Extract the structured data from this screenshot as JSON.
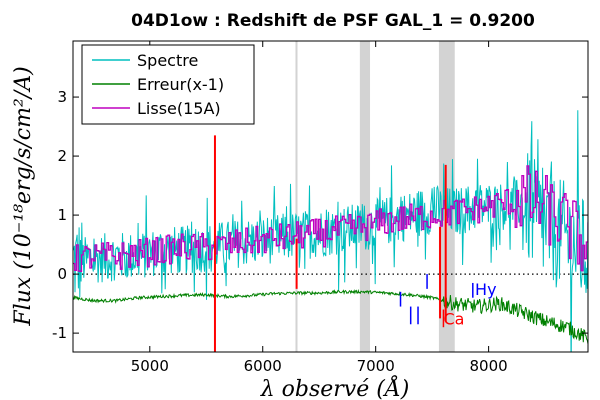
{
  "chart_data": {
    "type": "line",
    "title": "04D1ow : Redshift de PSF GAL_1 = 0.9200",
    "xlabel": "λ observé (Å)",
    "ylabel": "Flux (10⁻¹⁸erg/s/cm²/A)",
    "xlim": [
      4320,
      8880
    ],
    "ylim": [
      -1.32,
      3.95
    ],
    "xticks": [
      5000,
      6000,
      7000,
      8000
    ],
    "yticks": [
      -1,
      0,
      1,
      2,
      3
    ],
    "zero_line": true,
    "legend_position": "top-left",
    "legend": [
      "Spectre",
      "Erreur(x-1)",
      "Lisse(15A)"
    ],
    "colors": {
      "spectre": "#00bfbf",
      "erreur": "#008000",
      "lisse": "#bf00bf",
      "sky_lines": "#ff0000",
      "bands": "#d3d3d3",
      "blue_marks": "#0000ff",
      "red_marks": "#ff0000"
    },
    "telluric_bands": [
      [
        6290,
        6305
      ],
      [
        6860,
        6950
      ],
      [
        7560,
        7700
      ]
    ],
    "sky_lines": [
      {
        "x": 5577,
        "y0": -1.32,
        "y1": 2.35
      },
      {
        "x": 6300,
        "y0": -0.25,
        "y1": 0.6
      },
      {
        "x": 7570,
        "y0": -0.75,
        "y1": 0.8
      },
      {
        "x": 7620,
        "y0": -0.8,
        "y1": 1.85
      }
    ],
    "blue_marks": [
      {
        "x": 7220,
        "y0": -0.3,
        "y1": -0.55
      },
      {
        "x": 7310,
        "y0": -0.55,
        "y1": -0.85
      },
      {
        "x": 7375,
        "y0": -0.55,
        "y1": -0.85
      },
      {
        "x": 7455,
        "y0": 0.0,
        "y1": -0.25
      },
      {
        "x": 7860,
        "y0": -0.15,
        "y1": -0.4
      }
    ],
    "red_marks": [
      {
        "x": 7600,
        "y0": -0.6,
        "y1": -0.9
      }
    ],
    "annotations": [
      {
        "text": "Hy",
        "x": 7880,
        "y": -0.35,
        "color": "#0000ff"
      },
      {
        "text": "Ca",
        "x": 7600,
        "y": -0.85,
        "color": "#ff0000"
      }
    ],
    "series": [
      {
        "name": "Spectre",
        "x": [
          4330,
          4500,
          4700,
          4900,
          5100,
          5300,
          5500,
          5700,
          5900,
          6100,
          6300,
          6500,
          6700,
          6900,
          7100,
          7300,
          7500,
          7700,
          7900,
          8100,
          8300,
          8500,
          8700,
          8880
        ],
        "values": [
          0.2,
          0.25,
          0.3,
          0.3,
          0.4,
          0.4,
          0.45,
          0.5,
          0.55,
          0.6,
          0.65,
          0.7,
          0.75,
          0.8,
          0.9,
          1.0,
          1.1,
          1.05,
          1.15,
          1.15,
          1.2,
          0.8,
          0.6,
          0.3
        ]
      },
      {
        "name": "Erreur(x-1)",
        "x": [
          4330,
          4500,
          4700,
          4900,
          5100,
          5300,
          5500,
          5700,
          5900,
          6100,
          6300,
          6500,
          6700,
          6900,
          7100,
          7300,
          7500,
          7700,
          7900,
          8100,
          8300,
          8500,
          8700,
          8880
        ],
        "values": [
          -0.4,
          -0.45,
          -0.45,
          -0.4,
          -0.38,
          -0.36,
          -0.35,
          -0.38,
          -0.36,
          -0.33,
          -0.32,
          -0.32,
          -0.3,
          -0.3,
          -0.32,
          -0.35,
          -0.4,
          -0.5,
          -0.55,
          -0.5,
          -0.65,
          -0.8,
          -0.9,
          -1.1
        ]
      },
      {
        "name": "Lisse(15A)",
        "x": [
          4330,
          4500,
          4700,
          4900,
          5100,
          5300,
          5500,
          5700,
          5900,
          6100,
          6300,
          6500,
          6700,
          6900,
          7100,
          7300,
          7500,
          7700,
          7900,
          8100,
          8300,
          8500,
          8700,
          8880
        ],
        "values": [
          0.25,
          0.3,
          0.3,
          0.35,
          0.4,
          0.45,
          0.45,
          0.5,
          0.55,
          0.6,
          0.65,
          0.7,
          0.75,
          0.8,
          0.9,
          0.95,
          1.0,
          1.05,
          1.1,
          1.2,
          1.3,
          1.1,
          0.8,
          0.4
        ]
      }
    ]
  }
}
